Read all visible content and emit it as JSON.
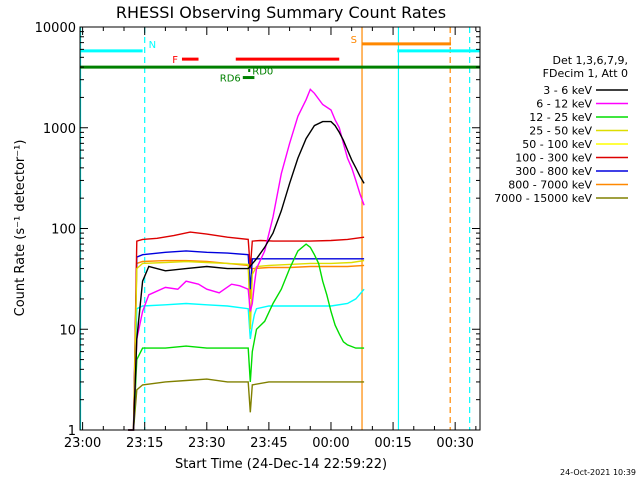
{
  "chart_data": {
    "type": "line",
    "title": "RHESSI Observing Summary Count Rates",
    "xlabel": "Start Time (24-Dec-14 22:59:22)",
    "ylabel": "Count Rate (s⁻¹ detector⁻¹)",
    "yscale": "log",
    "ylim": [
      1,
      10000
    ],
    "xlim_minutes": [
      -0.63,
      96
    ],
    "xticks": [
      {
        "m": 0,
        "label": "23:00"
      },
      {
        "m": 15,
        "label": "23:15"
      },
      {
        "m": 30,
        "label": "23:30"
      },
      {
        "m": 45,
        "label": "23:45"
      },
      {
        "m": 60,
        "label": "00:00"
      },
      {
        "m": 75,
        "label": "00:15"
      },
      {
        "m": 90,
        "label": "00:30"
      }
    ],
    "yticks": [
      {
        "v": 1,
        "label": "1"
      },
      {
        "v": 10,
        "label": "10"
      },
      {
        "v": 100,
        "label": "100"
      },
      {
        "v": 1000,
        "label": "1000"
      },
      {
        "v": 10000,
        "label": "10000"
      }
    ],
    "legend_header": [
      "Det 1,3,6,7,9,",
      "FDecim 1, Att 0"
    ],
    "series": [
      {
        "name": "3 - 6 keV",
        "color": "#000000",
        "points": [
          [
            11,
            1
          ],
          [
            12.3,
            1
          ],
          [
            13.1,
            8
          ],
          [
            14.5,
            30
          ],
          [
            16,
            42
          ],
          [
            20,
            38
          ],
          [
            25,
            40
          ],
          [
            30,
            42
          ],
          [
            35,
            40
          ],
          [
            40,
            40
          ],
          [
            42,
            50
          ],
          [
            44,
            65
          ],
          [
            46,
            90
          ],
          [
            48,
            150
          ],
          [
            50,
            280
          ],
          [
            52,
            500
          ],
          [
            54,
            780
          ],
          [
            56,
            1050
          ],
          [
            58,
            1150
          ],
          [
            60,
            1150
          ],
          [
            61,
            1050
          ],
          [
            62,
            900
          ],
          [
            63,
            750
          ],
          [
            64,
            600
          ],
          [
            65,
            480
          ],
          [
            66,
            400
          ],
          [
            67,
            330
          ],
          [
            68,
            280
          ]
        ]
      },
      {
        "name": "6 - 12 keV",
        "color": "#ff00ff",
        "points": [
          [
            11,
            1
          ],
          [
            12.3,
            1
          ],
          [
            13.1,
            8
          ],
          [
            14.5,
            15
          ],
          [
            16,
            22
          ],
          [
            20,
            26
          ],
          [
            23,
            25
          ],
          [
            25,
            30
          ],
          [
            28,
            28
          ],
          [
            30,
            25
          ],
          [
            33,
            23
          ],
          [
            36,
            28
          ],
          [
            38,
            27
          ],
          [
            40,
            25
          ],
          [
            40.5,
            15
          ],
          [
            41,
            18
          ],
          [
            41.5,
            28
          ],
          [
            42,
            40
          ],
          [
            44,
            60
          ],
          [
            46,
            130
          ],
          [
            48,
            350
          ],
          [
            50,
            700
          ],
          [
            52,
            1300
          ],
          [
            54,
            1900
          ],
          [
            55,
            2400
          ],
          [
            56,
            2200
          ],
          [
            58,
            1700
          ],
          [
            60,
            1500
          ],
          [
            61,
            1200
          ],
          [
            62,
            1000
          ],
          [
            63,
            700
          ],
          [
            64,
            500
          ],
          [
            65,
            400
          ],
          [
            66,
            300
          ],
          [
            67,
            220
          ],
          [
            68,
            170
          ]
        ]
      },
      {
        "name": "12 - 25 keV",
        "color": "#00dd00",
        "points": [
          [
            11,
            1
          ],
          [
            12.3,
            1
          ],
          [
            13.1,
            5
          ],
          [
            14.5,
            6.5
          ],
          [
            20,
            6.5
          ],
          [
            25,
            6.8
          ],
          [
            30,
            6.5
          ],
          [
            35,
            6.5
          ],
          [
            40,
            6.5
          ],
          [
            40.5,
            3
          ],
          [
            41,
            6
          ],
          [
            42,
            10
          ],
          [
            44,
            12
          ],
          [
            46,
            18
          ],
          [
            48,
            25
          ],
          [
            50,
            40
          ],
          [
            52,
            60
          ],
          [
            54,
            70
          ],
          [
            55,
            65
          ],
          [
            56,
            55
          ],
          [
            57,
            45
          ],
          [
            58,
            30
          ],
          [
            59,
            22
          ],
          [
            60,
            15
          ],
          [
            61,
            11
          ],
          [
            62,
            9
          ],
          [
            63,
            7.5
          ],
          [
            64,
            7
          ],
          [
            66,
            6.5
          ],
          [
            68,
            6.5
          ]
        ]
      },
      {
        "name": "25 - 50 keV",
        "color": "#dddd00",
        "points": [
          [
            11,
            1
          ],
          [
            12.3,
            1
          ],
          [
            13.1,
            40
          ],
          [
            14.5,
            45
          ],
          [
            20,
            46
          ],
          [
            25,
            47
          ],
          [
            30,
            46
          ],
          [
            35,
            45
          ],
          [
            40,
            44
          ],
          [
            40.5,
            10
          ],
          [
            41,
            35
          ],
          [
            42,
            42
          ],
          [
            45,
            43
          ],
          [
            50,
            44
          ],
          [
            55,
            45
          ],
          [
            60,
            45
          ],
          [
            65,
            46
          ],
          [
            68,
            48
          ]
        ]
      },
      {
        "name": "50 - 100 keV",
        "color": "#ffff00",
        "points": []
      },
      {
        "name": "100 - 300 keV",
        "color": "#dd0000",
        "points": [
          [
            11,
            1
          ],
          [
            12.3,
            1
          ],
          [
            13.1,
            75
          ],
          [
            14.5,
            78
          ],
          [
            18,
            80
          ],
          [
            22,
            85
          ],
          [
            26,
            92
          ],
          [
            30,
            88
          ],
          [
            35,
            82
          ],
          [
            40,
            78
          ],
          [
            40.5,
            40
          ],
          [
            41,
            75
          ],
          [
            43,
            76
          ],
          [
            46,
            75
          ],
          [
            50,
            75
          ],
          [
            55,
            75
          ],
          [
            60,
            76
          ],
          [
            64,
            78
          ],
          [
            68,
            82
          ]
        ]
      },
      {
        "name": "300 - 800 keV",
        "color": "#0000dd",
        "points": [
          [
            11,
            1
          ],
          [
            12.3,
            1
          ],
          [
            13.1,
            52
          ],
          [
            14.5,
            55
          ],
          [
            20,
            58
          ],
          [
            25,
            60
          ],
          [
            30,
            58
          ],
          [
            35,
            57
          ],
          [
            40,
            55
          ],
          [
            40.5,
            25
          ],
          [
            41,
            50
          ],
          [
            45,
            50
          ],
          [
            50,
            50
          ],
          [
            55,
            50
          ],
          [
            60,
            50
          ],
          [
            64,
            50
          ],
          [
            68,
            50
          ]
        ]
      },
      {
        "name": "800 - 7000 keV",
        "color": "#ff8800",
        "points": [
          [
            11,
            1
          ],
          [
            12.3,
            1
          ],
          [
            13.1,
            45
          ],
          [
            14.5,
            47
          ],
          [
            20,
            48
          ],
          [
            25,
            48
          ],
          [
            30,
            47
          ],
          [
            35,
            45
          ],
          [
            40,
            43
          ],
          [
            40.5,
            20
          ],
          [
            41,
            40
          ],
          [
            45,
            41
          ],
          [
            50,
            41
          ],
          [
            55,
            42
          ],
          [
            60,
            42
          ],
          [
            64,
            42
          ],
          [
            68,
            43
          ]
        ]
      },
      {
        "name": "7000 - 15000 keV",
        "color": "#808000",
        "points": [
          [
            11,
            1
          ],
          [
            12.3,
            1
          ],
          [
            13.1,
            2.5
          ],
          [
            14.5,
            2.8
          ],
          [
            20,
            3
          ],
          [
            25,
            3.1
          ],
          [
            30,
            3.2
          ],
          [
            35,
            3
          ],
          [
            40,
            3
          ],
          [
            40.5,
            1.5
          ],
          [
            41,
            2.8
          ],
          [
            45,
            3
          ],
          [
            50,
            3
          ],
          [
            55,
            3
          ],
          [
            60,
            3
          ],
          [
            64,
            3
          ],
          [
            68,
            3
          ]
        ]
      }
    ],
    "cyan_line": {
      "color": "#00ffff",
      "points": [
        [
          11,
          1
        ],
        [
          12.3,
          1
        ],
        [
          13.1,
          16
        ],
        [
          14.5,
          17
        ],
        [
          20,
          17.5
        ],
        [
          25,
          18
        ],
        [
          30,
          17.5
        ],
        [
          35,
          17
        ],
        [
          40,
          16
        ],
        [
          40.5,
          8
        ],
        [
          41,
          11
        ],
        [
          41.5,
          14
        ],
        [
          42,
          16
        ],
        [
          45,
          17
        ],
        [
          50,
          17
        ],
        [
          55,
          17
        ],
        [
          60,
          17
        ],
        [
          64,
          18
        ],
        [
          66,
          20
        ],
        [
          68,
          25
        ]
      ]
    },
    "flags": [
      {
        "label": "N",
        "color": "#00ffff",
        "segments": [
          [
            -0.63,
            14.5
          ],
          [
            76,
            96
          ]
        ],
        "value": 5800
      },
      {
        "label": "S",
        "color": "#ff8800",
        "segments": [
          [
            67.5,
            89
          ]
        ],
        "value": 6800
      },
      {
        "label": "F",
        "color": "#ff0000",
        "segments": [
          [
            24,
            28
          ],
          [
            37,
            62
          ]
        ],
        "value": 4800
      },
      {
        "label": "",
        "color": "#008000",
        "segments": [
          [
            -0.63,
            96
          ]
        ],
        "value": 4000
      },
      {
        "label": "RD0",
        "color": "#008000",
        "segments": [
          [
            40,
            40.5
          ]
        ],
        "value": 3700
      },
      {
        "label": "RD6",
        "color": "#008000",
        "segments": [
          [
            38.7,
            41.5
          ]
        ],
        "value": 3150
      }
    ],
    "vlines": [
      {
        "m": -0.5,
        "color": "#00ffff",
        "style": "solid"
      },
      {
        "m": 15,
        "color": "#00ffff",
        "style": "dashed"
      },
      {
        "m": 67.5,
        "color": "#ff8800",
        "style": "solid"
      },
      {
        "m": 76.3,
        "color": "#00ffff",
        "style": "solid"
      },
      {
        "m": 88.8,
        "color": "#ff8800",
        "style": "dashed"
      },
      {
        "m": 93.5,
        "color": "#00ffff",
        "style": "dashed"
      }
    ],
    "timestamp": "24-Oct-2021 10:39"
  }
}
